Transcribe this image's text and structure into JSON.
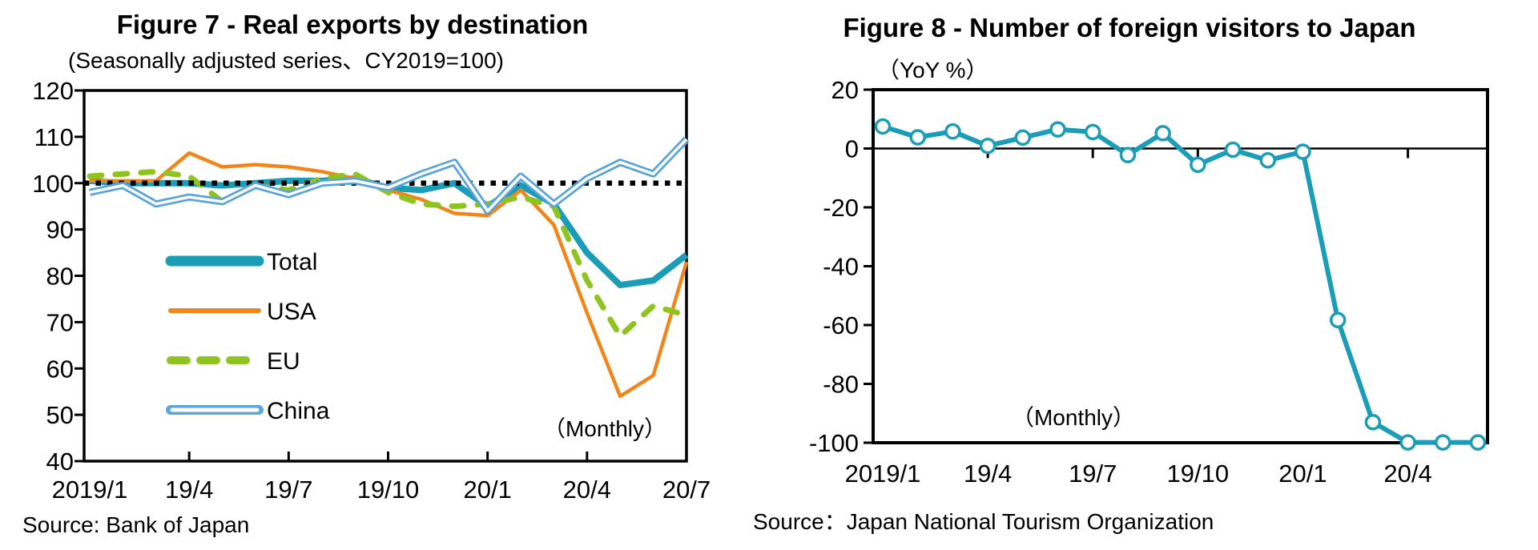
{
  "figures": [
    {
      "title": "Figure 7 - Real exports by destination",
      "subtitle": "(Seasonally adjusted series、CY2019=100)",
      "annotation": "（Monthly）",
      "source": "Source: Bank of Japan",
      "chart_data": {
        "type": "line",
        "categories": [
          "2019/1",
          "2019/2",
          "2019/3",
          "2019/4",
          "2019/5",
          "2019/6",
          "2019/7",
          "2019/8",
          "2019/9",
          "2019/10",
          "2019/11",
          "2019/12",
          "2020/1",
          "2020/2",
          "2020/3",
          "2020/4",
          "2020/5",
          "2020/6",
          "2020/7"
        ],
        "x_tick_labels": [
          "2019/1",
          "19/4",
          "19/7",
          "19/10",
          "20/1",
          "20/4",
          "20/7"
        ],
        "x_tick_indices": [
          0,
          3,
          6,
          9,
          12,
          15,
          18
        ],
        "yticks": [
          40,
          50,
          60,
          70,
          80,
          90,
          100,
          110,
          120
        ],
        "ylim": [
          40,
          120
        ],
        "grid": false,
        "reference_line": {
          "value": 100,
          "style": "dotted",
          "color": "#000000"
        },
        "legend_position": "inside-lower-left",
        "series": [
          {
            "name": "Total",
            "color": "#1b9db8",
            "style": "thick",
            "values": [
              100.5,
              100,
              100,
              100,
              99.5,
              100,
              100.5,
              100.5,
              101,
              99,
              98.5,
              100,
              95,
              99.5,
              95.5,
              85,
              78,
              79,
              84.5
            ]
          },
          {
            "name": "USA",
            "color": "#f0861a",
            "style": "solid",
            "values": [
              100.5,
              100.5,
              100.5,
              106.5,
              103.5,
              104,
              103.5,
              102.5,
              101,
              98.5,
              96.5,
              93.5,
              93,
              98.5,
              91,
              72,
              54,
              58.5,
              83
            ]
          },
          {
            "name": "EU",
            "color": "#8fc31f",
            "style": "dashed",
            "values": [
              101.5,
              102,
              102.5,
              101.5,
              96,
              99.5,
              98.5,
              101,
              102,
              98,
              95.5,
              95,
              95.5,
              97,
              95,
              79,
              67,
              73.5,
              71.5
            ]
          },
          {
            "name": "China",
            "color": "#5ba4d8",
            "style": "double",
            "values": [
              98,
              99.5,
              95.5,
              97,
              96,
              99.5,
              97.5,
              100,
              100.5,
              99,
              102,
              104.5,
              94,
              101.5,
              95.5,
              101,
              104.5,
              102,
              109.5
            ]
          }
        ]
      }
    },
    {
      "title": "Figure 8 - Number of foreign visitors to Japan",
      "subtitle": "（YoY %）",
      "annotation": "（Monthly）",
      "source": "Source：Japan National Tourism Organization",
      "chart_data": {
        "type": "line",
        "categories": [
          "2019/1",
          "2019/2",
          "2019/3",
          "2019/4",
          "2019/5",
          "2019/6",
          "2019/7",
          "2019/8",
          "2019/9",
          "2019/10",
          "2019/11",
          "2019/12",
          "2020/1",
          "2020/2",
          "2020/3",
          "2020/4",
          "2020/5",
          "2020/6"
        ],
        "x_tick_labels": [
          "2019/1",
          "19/4",
          "19/7",
          "19/10",
          "20/1",
          "20/4"
        ],
        "x_tick_indices": [
          0,
          3,
          6,
          9,
          12,
          15
        ],
        "yticks": [
          20,
          0,
          -20,
          -40,
          -60,
          -80,
          -100
        ],
        "ylim": [
          -100,
          20
        ],
        "grid": false,
        "zero_line": true,
        "series": [
          {
            "name": "Foreign visitors YoY %",
            "color": "#1b9db8",
            "style": "thick-markers",
            "values": [
              7.5,
              3.8,
              5.8,
              0.9,
              3.7,
              6.5,
              5.6,
              -2.2,
              5.2,
              -5.5,
              -0.4,
              -4.0,
              -1.1,
              -58.3,
              -93.0,
              -99.9,
              -99.9,
              -99.9
            ]
          }
        ]
      }
    }
  ]
}
